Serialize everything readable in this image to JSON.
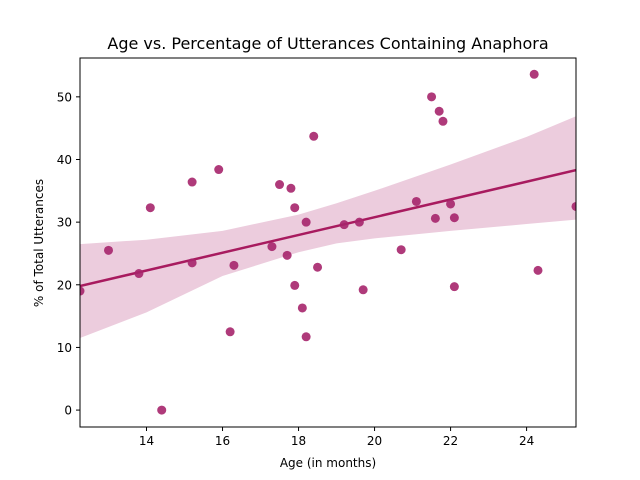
{
  "chart_data": {
    "type": "scatter",
    "title": "Age vs. Percentage of Utterances Containing Anaphora",
    "xlabel": "Age (in months)",
    "ylabel": "% of Total Utterances",
    "xlim": [
      12.25,
      25.3
    ],
    "ylim": [
      -2.7,
      56.2
    ],
    "x_ticks": [
      14,
      16,
      18,
      20,
      22,
      24
    ],
    "x_tick_labels": [
      "14",
      "16",
      "18",
      "20",
      "22",
      "24"
    ],
    "y_ticks": [
      0,
      10,
      20,
      30,
      40,
      50
    ],
    "y_tick_labels": [
      "0",
      "10",
      "20",
      "30",
      "40",
      "50"
    ],
    "grid": false,
    "legend": "none",
    "colors": {
      "points": "#a6256c",
      "line": "#a81b5f",
      "ci_band": "#ecccdd"
    },
    "points": [
      {
        "x": 12.25,
        "y": 19.0
      },
      {
        "x": 13.0,
        "y": 25.5
      },
      {
        "x": 13.8,
        "y": 21.8
      },
      {
        "x": 14.1,
        "y": 32.3
      },
      {
        "x": 14.4,
        "y": 0.0
      },
      {
        "x": 15.2,
        "y": 36.4
      },
      {
        "x": 15.2,
        "y": 23.5
      },
      {
        "x": 15.9,
        "y": 38.4
      },
      {
        "x": 16.2,
        "y": 12.5
      },
      {
        "x": 16.3,
        "y": 23.1
      },
      {
        "x": 17.3,
        "y": 26.1
      },
      {
        "x": 17.5,
        "y": 36.0
      },
      {
        "x": 17.7,
        "y": 24.7
      },
      {
        "x": 17.8,
        "y": 35.4
      },
      {
        "x": 17.9,
        "y": 32.3
      },
      {
        "x": 17.9,
        "y": 19.9
      },
      {
        "x": 18.1,
        "y": 16.3
      },
      {
        "x": 18.2,
        "y": 30.0
      },
      {
        "x": 18.2,
        "y": 11.7
      },
      {
        "x": 18.4,
        "y": 43.7
      },
      {
        "x": 18.5,
        "y": 22.8
      },
      {
        "x": 19.2,
        "y": 29.6
      },
      {
        "x": 19.6,
        "y": 30.0
      },
      {
        "x": 19.7,
        "y": 19.2
      },
      {
        "x": 20.7,
        "y": 25.6
      },
      {
        "x": 21.1,
        "y": 33.3
      },
      {
        "x": 21.5,
        "y": 50.0
      },
      {
        "x": 21.6,
        "y": 30.6
      },
      {
        "x": 21.7,
        "y": 47.7
      },
      {
        "x": 21.8,
        "y": 46.1
      },
      {
        "x": 22.0,
        "y": 32.9
      },
      {
        "x": 22.1,
        "y": 30.7
      },
      {
        "x": 22.1,
        "y": 19.7
      },
      {
        "x": 24.2,
        "y": 53.6
      },
      {
        "x": 24.3,
        "y": 22.3
      },
      {
        "x": 25.3,
        "y": 32.5
      }
    ],
    "regression_line": {
      "x": [
        12.25,
        25.3
      ],
      "y": [
        19.8,
        38.3
      ]
    },
    "confidence_band": {
      "x": [
        12.25,
        14.0,
        16.0,
        18.0,
        19.0,
        20.0,
        22.0,
        24.0,
        25.3
      ],
      "upper": [
        26.5,
        27.2,
        28.6,
        31.2,
        33.0,
        35.0,
        39.2,
        43.6,
        46.9
      ],
      "lower": [
        11.5,
        15.6,
        21.4,
        25.2,
        26.6,
        27.4,
        28.6,
        29.7,
        30.4
      ]
    }
  }
}
